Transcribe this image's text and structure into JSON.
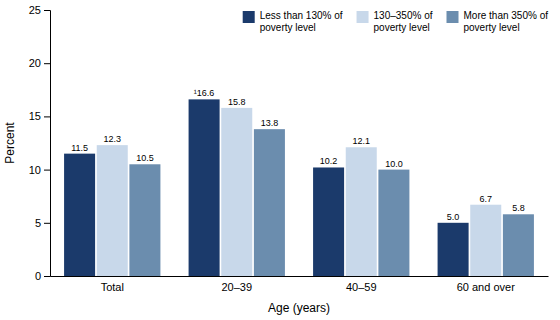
{
  "chart_data": {
    "type": "bar",
    "categories": [
      "Total",
      "20–39",
      "40–59",
      "60 and over"
    ],
    "series": [
      {
        "name": "Less than 130% of\npoverty level",
        "color": "#1b3a6b",
        "values": [
          11.5,
          16.6,
          10.2,
          5.0
        ],
        "value_labels": [
          "11.5",
          "¹16.6",
          "10.2",
          "5.0"
        ]
      },
      {
        "name": "130–350% of\npoverty level",
        "color": "#c8d8ea",
        "values": [
          12.3,
          15.8,
          12.1,
          6.7
        ]
      },
      {
        "name": "More than 350% of\npoverty level",
        "color": "#6b8dae",
        "values": [
          10.5,
          13.8,
          10.0,
          5.8
        ],
        "value_labels": [
          "10.5",
          "13.8",
          "10.0",
          "5.8"
        ]
      }
    ],
    "xlabel": "Age (years)",
    "ylabel": "Percent",
    "ylim": [
      0,
      25
    ],
    "yticks": [
      0,
      5,
      10,
      15,
      20,
      25
    ],
    "data_labels": true,
    "legend": "upper right",
    "grid": false
  }
}
